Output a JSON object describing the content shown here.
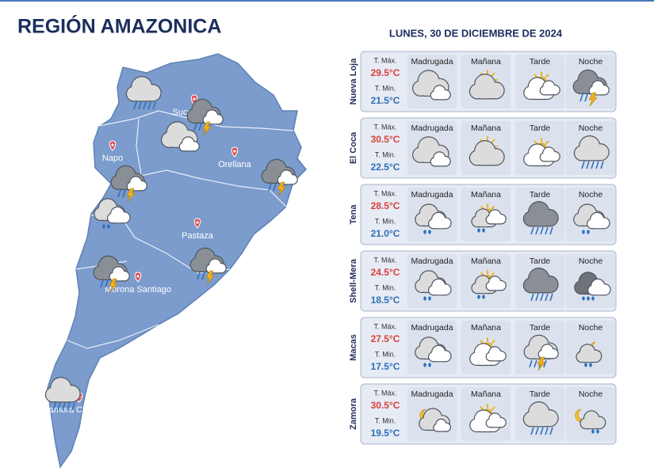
{
  "header": {
    "title": "REGIÓN AMAZONICA",
    "date": "LUNES, 30 DE DICIEMBRE DE 2024"
  },
  "map": {
    "labels": [
      "Sucumbíos",
      "Napo",
      "Orellana",
      "Pastaza",
      "Morona Santiago",
      "Zamora Chinchipe"
    ]
  },
  "forecast": {
    "periods": [
      "Madrugada",
      "Mañana",
      "Tarde",
      "Noche"
    ],
    "max_label": "T. Máx.",
    "min_label": "T. Min.",
    "rows": [
      {
        "city": "Nueva Loja",
        "max": "29.5°C",
        "min": "21.5°C"
      },
      {
        "city": "El Coca",
        "max": "30.5°C",
        "min": "22.5°C"
      },
      {
        "city": "Tena",
        "max": "28.5°C",
        "min": "21.0°C"
      },
      {
        "city": "Shell-Mera",
        "max": "24.5°C",
        "min": "18.5°C"
      },
      {
        "city": "Macas",
        "max": "27.5°C",
        "min": "17.5°C"
      },
      {
        "city": "Zamora",
        "max": "30.5°C",
        "min": "19.5°C"
      }
    ]
  }
}
